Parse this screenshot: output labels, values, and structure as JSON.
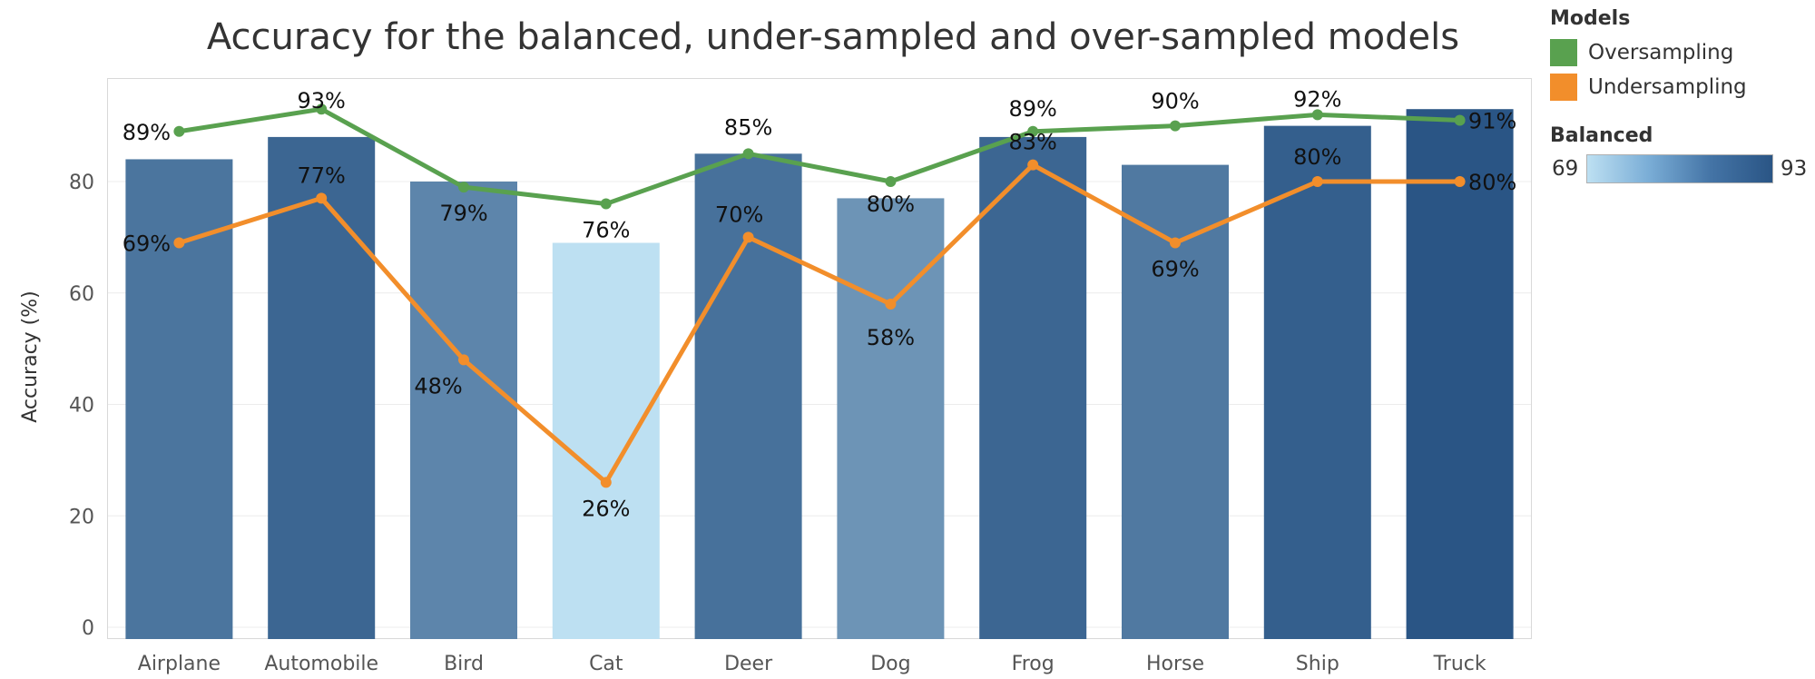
{
  "chart_data": {
    "type": "bar",
    "title": "Accuracy for the balanced, under-sampled and over-sampled models",
    "xlabel": "",
    "ylabel": "Accuracy (%)",
    "ylim": [
      0,
      97
    ],
    "yticks": [
      0,
      20,
      40,
      60,
      80
    ],
    "categories": [
      "Airplane",
      "Automobile",
      "Bird",
      "Cat",
      "Deer",
      "Dog",
      "Frog",
      "Horse",
      "Ship",
      "Truck"
    ],
    "bars": {
      "name": "Balanced",
      "values": [
        84,
        88,
        80,
        69,
        85,
        77,
        88,
        83,
        90,
        93
      ]
    },
    "series": [
      {
        "name": "Oversampling",
        "type": "line",
        "color": "#59a14f",
        "values": [
          89,
          93,
          79,
          76,
          85,
          80,
          89,
          90,
          92,
          91
        ],
        "labels": [
          "89%",
          "93%",
          "79%",
          "76%",
          "85%",
          "80%",
          "89%",
          "90%",
          "92%",
          "91%"
        ]
      },
      {
        "name": "Undersampling",
        "type": "line",
        "color": "#f28e2b",
        "values": [
          69,
          77,
          48,
          26,
          70,
          58,
          83,
          69,
          80,
          80
        ],
        "labels": [
          "69%",
          "77%",
          "48%",
          "26%",
          "70%",
          "58%",
          "83%",
          "69%",
          "80%",
          "80%"
        ]
      }
    ],
    "grid": true,
    "legend_placement": "right"
  },
  "legend": {
    "models_title": "Models",
    "items": [
      {
        "label": "Oversampling",
        "color": "#59a14f"
      },
      {
        "label": "Undersampling",
        "color": "#f28e2b"
      }
    ],
    "balanced_title": "Balanced",
    "balanced_min": "69",
    "balanced_max": "93",
    "balanced_color_low": "#bde0f2",
    "balanced_color_high": "#2a5585"
  }
}
